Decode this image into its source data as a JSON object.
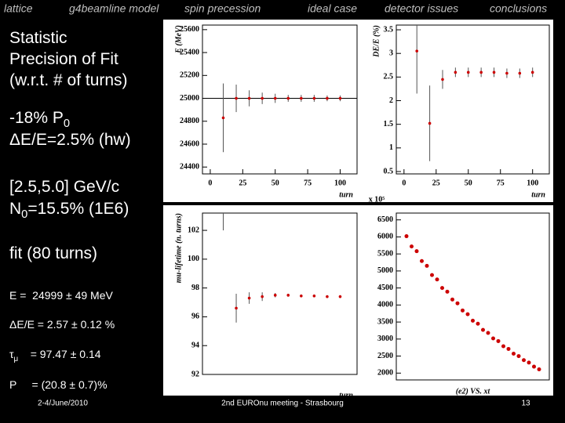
{
  "slide": {
    "nav": [
      "lattice",
      "g4beamline model",
      "spin precession",
      "ideal case",
      "detector issues",
      "conclusions"
    ],
    "notes": [
      [
        {
          "t": "Statistic"
        }
      ],
      [
        {
          "t": "Precision of Fit"
        }
      ],
      [
        {
          "t": "(w.r.t. # of turns)"
        }
      ],
      [
        {
          "t": "-18% P"
        },
        {
          "sub": "0"
        }
      ],
      [
        {
          "t": "ΔE/E=2.5% (hw)"
        }
      ],
      [
        {
          "t": "[2.5,5.0] GeV/c"
        }
      ],
      [
        {
          "t": "N"
        },
        {
          "sub": "0"
        },
        {
          "t": "=15.5% (1E6)"
        }
      ],
      [
        {
          "t": "fit (80 turns)"
        }
      ],
      [
        {
          "t": "E =  24999 ± 49 MeV"
        }
      ],
      [
        {
          "t": "ΔE/E = 2.57 ± 0.12 %"
        }
      ],
      [
        {
          "t": "τ"
        },
        {
          "sub": "μ"
        },
        {
          "t": "    = 97.47 ± 0.14"
        }
      ],
      [
        {
          "t": "P     = (20.8 ± 0.7)%"
        }
      ]
    ],
    "footer": {
      "date": "2-4/June/2010",
      "event": "2nd EUROnu meeting - Strasbourg",
      "page": "13"
    }
  },
  "chart_data": [
    {
      "type": "errorbar",
      "ylabel": "E (MeV)",
      "xlabel": "turn",
      "color": "#cc0000",
      "x": [
        10,
        20,
        30,
        40,
        50,
        60,
        70,
        80,
        90,
        100
      ],
      "values": [
        24830,
        25000,
        25000,
        25000,
        25000,
        25000,
        25000,
        25000,
        25000,
        25000
      ],
      "errors": [
        300,
        120,
        70,
        50,
        40,
        30,
        30,
        30,
        25,
        25
      ],
      "reference_line": 25000,
      "xlim": [
        -6,
        113
      ],
      "ylim": [
        24340,
        25640
      ],
      "xticks": [
        0,
        25,
        50,
        75,
        100
      ],
      "yticks": [
        24400,
        24600,
        24800,
        25000,
        25200,
        25400,
        25600
      ]
    },
    {
      "type": "errorbar",
      "ylabel": "DE/E (%)",
      "xlabel": "turn",
      "color": "#cc0000",
      "x": [
        10,
        20,
        30,
        40,
        50,
        60,
        70,
        80,
        90,
        100
      ],
      "values": [
        3.05,
        1.52,
        2.45,
        2.6,
        2.6,
        2.6,
        2.6,
        2.58,
        2.58,
        2.6
      ],
      "errors": [
        0.9,
        0.8,
        0.2,
        0.1,
        0.1,
        0.1,
        0.1,
        0.1,
        0.1,
        0.1
      ],
      "xlim": [
        -6,
        113
      ],
      "ylim": [
        0.45,
        3.6
      ],
      "xticks": [
        0,
        25,
        50,
        75,
        100
      ],
      "yticks": [
        0.5,
        1,
        1.5,
        2,
        2.5,
        3,
        3.5
      ]
    },
    {
      "type": "errorbar",
      "ylabel": "mu-lifetime (n. turns)",
      "xlabel": "turn",
      "color": "#cc0000",
      "x": [
        10,
        20,
        30,
        40,
        50,
        60,
        70,
        80,
        90,
        100
      ],
      "values": [
        104,
        96.6,
        97.3,
        97.4,
        97.5,
        97.5,
        97.45,
        97.45,
        97.4,
        97.4
      ],
      "errors": [
        2,
        1,
        0.4,
        0.3,
        0.15,
        0.1,
        0.1,
        0.1,
        0.1,
        0.1
      ],
      "xlim": [
        -6,
        113
      ],
      "ylim": [
        92,
        103.2
      ],
      "yticks": [
        92,
        94,
        96,
        98,
        100,
        102
      ]
    },
    {
      "type": "scatter",
      "title": "(e2) VS. xt",
      "axis_exponent": "x 10⁵",
      "color": "#cc0000",
      "x": [
        1,
        4,
        7,
        10,
        13,
        16,
        19,
        22,
        25,
        28,
        31,
        34,
        37,
        40,
        43,
        46,
        49,
        52,
        55,
        58,
        61,
        64,
        67,
        70,
        73,
        76,
        79
      ],
      "values": [
        6020,
        5720,
        5580,
        5290,
        5150,
        4880,
        4750,
        4500,
        4390,
        4160,
        4050,
        3840,
        3730,
        3540,
        3450,
        3270,
        3180,
        3020,
        2940,
        2790,
        2710,
        2570,
        2500,
        2380,
        2310,
        2190,
        2110
      ],
      "xlim": [
        -5,
        85
      ],
      "ylim": [
        1800,
        6700
      ],
      "yticks": [
        2000,
        2500,
        3000,
        3500,
        4000,
        4500,
        5000,
        5500,
        6000,
        6500
      ]
    }
  ]
}
